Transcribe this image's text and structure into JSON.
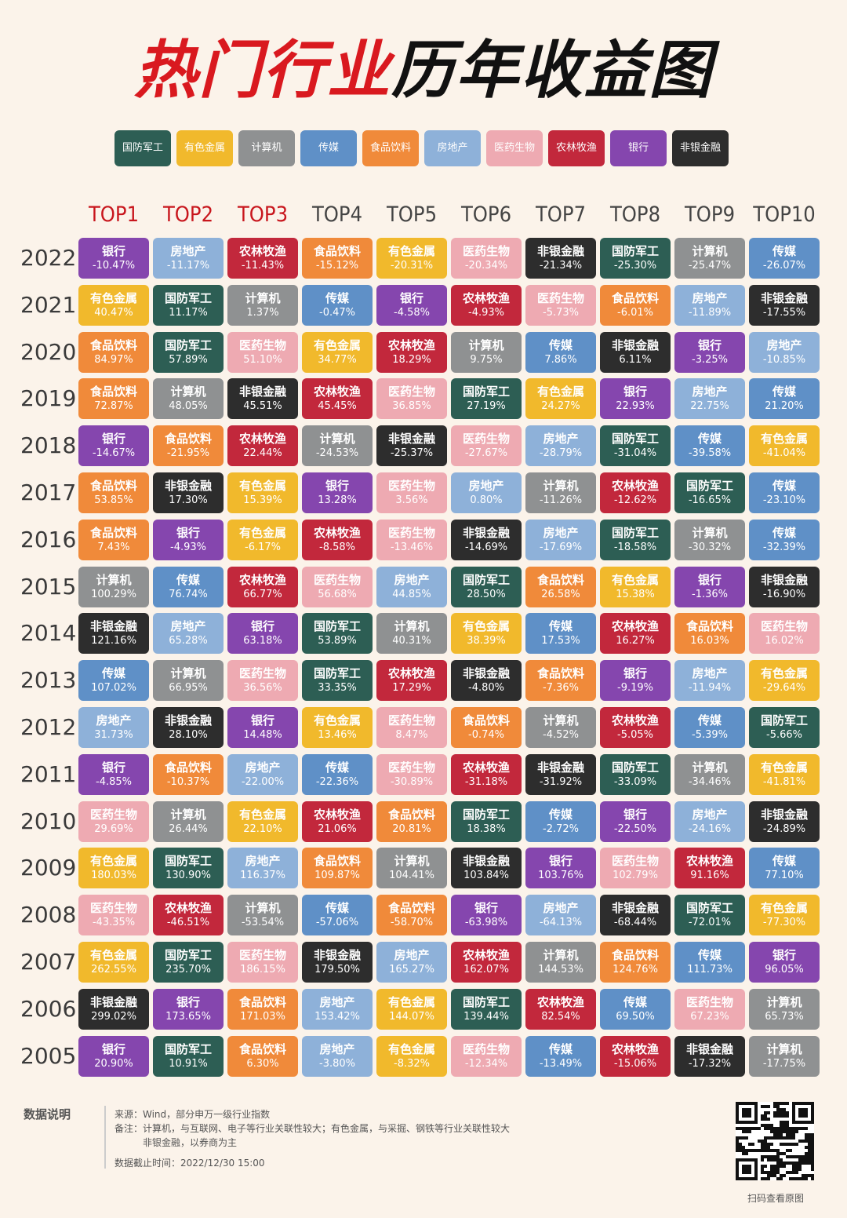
{
  "title": {
    "part1": "热门行业",
    "part2": "历年收益图"
  },
  "colors": {
    "国防军工": "#2d5e54",
    "有色金属": "#f1b92c",
    "计算机": "#8f9192",
    "传媒": "#5f90c7",
    "食品饮料": "#f08a3a",
    "房地产": "#8eb1d9",
    "医药生物": "#eeaab2",
    "农林牧渔": "#c2283c",
    "银行": "#8546ae",
    "非银金融": "#2d2d2d"
  },
  "legend": [
    "国防军工",
    "有色金属",
    "计算机",
    "传媒",
    "食品饮料",
    "房地产",
    "医药生物",
    "农林牧渔",
    "银行",
    "非银金融"
  ],
  "chart_data": {
    "type": "table",
    "columns": [
      "TOP1",
      "TOP2",
      "TOP3",
      "TOP4",
      "TOP5",
      "TOP6",
      "TOP7",
      "TOP8",
      "TOP9",
      "TOP10"
    ],
    "rows": [
      {
        "year": "2022",
        "cells": [
          [
            "银行",
            "-10.47%"
          ],
          [
            "房地产",
            "-11.17%"
          ],
          [
            "农林牧渔",
            "-11.43%"
          ],
          [
            "食品饮料",
            "-15.12%"
          ],
          [
            "有色金属",
            "-20.31%"
          ],
          [
            "医药生物",
            "-20.34%"
          ],
          [
            "非银金融",
            "-21.34%"
          ],
          [
            "国防军工",
            "-25.30%"
          ],
          [
            "计算机",
            "-25.47%"
          ],
          [
            "传媒",
            "-26.07%"
          ]
        ]
      },
      {
        "year": "2021",
        "cells": [
          [
            "有色金属",
            "40.47%"
          ],
          [
            "国防军工",
            "11.17%"
          ],
          [
            "计算机",
            "1.37%"
          ],
          [
            "传媒",
            "-0.47%"
          ],
          [
            "银行",
            "-4.58%"
          ],
          [
            "农林牧渔",
            "-4.93%"
          ],
          [
            "医药生物",
            "-5.73%"
          ],
          [
            "食品饮料",
            "-6.01%"
          ],
          [
            "房地产",
            "-11.89%"
          ],
          [
            "非银金融",
            "-17.55%"
          ]
        ]
      },
      {
        "year": "2020",
        "cells": [
          [
            "食品饮料",
            "84.97%"
          ],
          [
            "国防军工",
            "57.89%"
          ],
          [
            "医药生物",
            "51.10%"
          ],
          [
            "有色金属",
            "34.77%"
          ],
          [
            "农林牧渔",
            "18.29%"
          ],
          [
            "计算机",
            "9.75%"
          ],
          [
            "传媒",
            "7.86%"
          ],
          [
            "非银金融",
            "6.11%"
          ],
          [
            "银行",
            "-3.25%"
          ],
          [
            "房地产",
            "-10.85%"
          ]
        ]
      },
      {
        "year": "2019",
        "cells": [
          [
            "食品饮料",
            "72.87%"
          ],
          [
            "计算机",
            "48.05%"
          ],
          [
            "非银金融",
            "45.51%"
          ],
          [
            "农林牧渔",
            "45.45%"
          ],
          [
            "医药生物",
            "36.85%"
          ],
          [
            "国防军工",
            "27.19%"
          ],
          [
            "有色金属",
            "24.27%"
          ],
          [
            "银行",
            "22.93%"
          ],
          [
            "房地产",
            "22.75%"
          ],
          [
            "传媒",
            "21.20%"
          ]
        ]
      },
      {
        "year": "2018",
        "cells": [
          [
            "银行",
            "-14.67%"
          ],
          [
            "食品饮料",
            "-21.95%"
          ],
          [
            "农林牧渔",
            "22.44%"
          ],
          [
            "计算机",
            "-24.53%"
          ],
          [
            "非银金融",
            "-25.37%"
          ],
          [
            "医药生物",
            "-27.67%"
          ],
          [
            "房地产",
            "-28.79%"
          ],
          [
            "国防军工",
            "-31.04%"
          ],
          [
            "传媒",
            "-39.58%"
          ],
          [
            "有色金属",
            "-41.04%"
          ]
        ]
      },
      {
        "year": "2017",
        "cells": [
          [
            "食品饮料",
            "53.85%"
          ],
          [
            "非银金融",
            "17.30%"
          ],
          [
            "有色金属",
            "15.39%"
          ],
          [
            "银行",
            "13.28%"
          ],
          [
            "医药生物",
            "3.56%"
          ],
          [
            "房地产",
            "0.80%"
          ],
          [
            "计算机",
            "-11.26%"
          ],
          [
            "农林牧渔",
            "-12.62%"
          ],
          [
            "国防军工",
            "-16.65%"
          ],
          [
            "传媒",
            "-23.10%"
          ]
        ]
      },
      {
        "year": "2016",
        "cells": [
          [
            "食品饮料",
            "7.43%"
          ],
          [
            "银行",
            "-4.93%"
          ],
          [
            "有色金属",
            "-6.17%"
          ],
          [
            "农林牧渔",
            "-8.58%"
          ],
          [
            "医药生物",
            "-13.46%"
          ],
          [
            "非银金融",
            "-14.69%"
          ],
          [
            "房地产",
            "-17.69%"
          ],
          [
            "国防军工",
            "-18.58%"
          ],
          [
            "计算机",
            "-30.32%"
          ],
          [
            "传媒",
            "-32.39%"
          ]
        ]
      },
      {
        "year": "2015",
        "cells": [
          [
            "计算机",
            "100.29%"
          ],
          [
            "传媒",
            "76.74%"
          ],
          [
            "农林牧渔",
            "66.77%"
          ],
          [
            "医药生物",
            "56.68%"
          ],
          [
            "房地产",
            "44.85%"
          ],
          [
            "国防军工",
            "28.50%"
          ],
          [
            "食品饮料",
            "26.58%"
          ],
          [
            "有色金属",
            "15.38%"
          ],
          [
            "银行",
            "-1.36%"
          ],
          [
            "非银金融",
            "-16.90%"
          ]
        ]
      },
      {
        "year": "2014",
        "cells": [
          [
            "非银金融",
            "121.16%"
          ],
          [
            "房地产",
            "65.28%"
          ],
          [
            "银行",
            "63.18%"
          ],
          [
            "国防军工",
            "53.89%"
          ],
          [
            "计算机",
            "40.31%"
          ],
          [
            "有色金属",
            "38.39%"
          ],
          [
            "传媒",
            "17.53%"
          ],
          [
            "农林牧渔",
            "16.27%"
          ],
          [
            "食品饮料",
            "16.03%"
          ],
          [
            "医药生物",
            "16.02%"
          ]
        ]
      },
      {
        "year": "2013",
        "cells": [
          [
            "传媒",
            "107.02%"
          ],
          [
            "计算机",
            "66.95%"
          ],
          [
            "医药生物",
            "36.56%"
          ],
          [
            "国防军工",
            "33.35%"
          ],
          [
            "农林牧渔",
            "17.29%"
          ],
          [
            "非银金融",
            "-4.80%"
          ],
          [
            "食品饮料",
            "-7.36%"
          ],
          [
            "银行",
            "-9.19%"
          ],
          [
            "房地产",
            "-11.94%"
          ],
          [
            "有色金属",
            "-29.64%"
          ]
        ]
      },
      {
        "year": "2012",
        "cells": [
          [
            "房地产",
            "31.73%"
          ],
          [
            "非银金融",
            "28.10%"
          ],
          [
            "银行",
            "14.48%"
          ],
          [
            "有色金属",
            "13.46%"
          ],
          [
            "医药生物",
            "8.47%"
          ],
          [
            "食品饮料",
            "-0.74%"
          ],
          [
            "计算机",
            "-4.52%"
          ],
          [
            "农林牧渔",
            "-5.05%"
          ],
          [
            "传媒",
            "-5.39%"
          ],
          [
            "国防军工",
            "-5.66%"
          ]
        ]
      },
      {
        "year": "2011",
        "cells": [
          [
            "银行",
            "-4.85%"
          ],
          [
            "食品饮料",
            "-10.37%"
          ],
          [
            "房地产",
            "-22.00%"
          ],
          [
            "传媒",
            "-22.36%"
          ],
          [
            "医药生物",
            "-30.89%"
          ],
          [
            "农林牧渔",
            "-31.18%"
          ],
          [
            "非银金融",
            "-31.92%"
          ],
          [
            "国防军工",
            "-33.09%"
          ],
          [
            "计算机",
            "-34.46%"
          ],
          [
            "有色金属",
            "-41.81%"
          ]
        ]
      },
      {
        "year": "2010",
        "cells": [
          [
            "医药生物",
            "29.69%"
          ],
          [
            "计算机",
            "26.44%"
          ],
          [
            "有色金属",
            "22.10%"
          ],
          [
            "农林牧渔",
            "21.06%"
          ],
          [
            "食品饮料",
            "20.81%"
          ],
          [
            "国防军工",
            "18.38%"
          ],
          [
            "传媒",
            "-2.72%"
          ],
          [
            "银行",
            "-22.50%"
          ],
          [
            "房地产",
            "-24.16%"
          ],
          [
            "非银金融",
            "-24.89%"
          ]
        ]
      },
      {
        "year": "2009",
        "cells": [
          [
            "有色金属",
            "180.03%"
          ],
          [
            "国防军工",
            "130.90%"
          ],
          [
            "房地产",
            "116.37%"
          ],
          [
            "食品饮料",
            "109.87%"
          ],
          [
            "计算机",
            "104.41%"
          ],
          [
            "非银金融",
            "103.84%"
          ],
          [
            "银行",
            "103.76%"
          ],
          [
            "医药生物",
            "102.79%"
          ],
          [
            "农林牧渔",
            "91.16%"
          ],
          [
            "传媒",
            "77.10%"
          ]
        ]
      },
      {
        "year": "2008",
        "cells": [
          [
            "医药生物",
            "-43.35%"
          ],
          [
            "农林牧渔",
            "-46.51%"
          ],
          [
            "计算机",
            "-53.54%"
          ],
          [
            "传媒",
            "-57.06%"
          ],
          [
            "食品饮料",
            "-58.70%"
          ],
          [
            "银行",
            "-63.98%"
          ],
          [
            "房地产",
            "-64.13%"
          ],
          [
            "非银金融",
            "-68.44%"
          ],
          [
            "国防军工",
            "-72.01%"
          ],
          [
            "有色金属",
            "-77.30%"
          ]
        ]
      },
      {
        "year": "2007",
        "cells": [
          [
            "有色金属",
            "262.55%"
          ],
          [
            "国防军工",
            "235.70%"
          ],
          [
            "医药生物",
            "186.15%"
          ],
          [
            "非银金融",
            "179.50%"
          ],
          [
            "房地产",
            "165.27%"
          ],
          [
            "农林牧渔",
            "162.07%"
          ],
          [
            "计算机",
            "144.53%"
          ],
          [
            "食品饮料",
            "124.76%"
          ],
          [
            "传媒",
            "111.73%"
          ],
          [
            "银行",
            "96.05%"
          ]
        ]
      },
      {
        "year": "2006",
        "cells": [
          [
            "非银金融",
            "299.02%"
          ],
          [
            "银行",
            "173.65%"
          ],
          [
            "食品饮料",
            "171.03%"
          ],
          [
            "房地产",
            "153.42%"
          ],
          [
            "有色金属",
            "144.07%"
          ],
          [
            "国防军工",
            "139.44%"
          ],
          [
            "农林牧渔",
            "82.54%"
          ],
          [
            "传媒",
            "69.50%"
          ],
          [
            "医药生物",
            "67.23%"
          ],
          [
            "计算机",
            "65.73%"
          ]
        ]
      },
      {
        "year": "2005",
        "cells": [
          [
            "银行",
            "20.90%"
          ],
          [
            "国防军工",
            "10.91%"
          ],
          [
            "食品饮料",
            "6.30%"
          ],
          [
            "房地产",
            "-3.80%"
          ],
          [
            "有色金属",
            "-8.32%"
          ],
          [
            "医药生物",
            "-12.34%"
          ],
          [
            "传媒",
            "-13.49%"
          ],
          [
            "农林牧渔",
            "-15.06%"
          ],
          [
            "非银金融",
            "-17.32%"
          ],
          [
            "计算机",
            "-17.75%"
          ]
        ]
      }
    ]
  },
  "notes": {
    "heading": "数据说明",
    "source": "来源：Wind，部分申万一级行业指数",
    "remark1": "备注：计算机，与互联网、电子等行业关联性较大；有色金属，与采掘、钢铁等行业关联性较大",
    "remark2": "非银金融，以券商为主",
    "cutoff": "数据截止时间：2022/12/30 15:00"
  },
  "qr_caption": "扫码查看原图"
}
